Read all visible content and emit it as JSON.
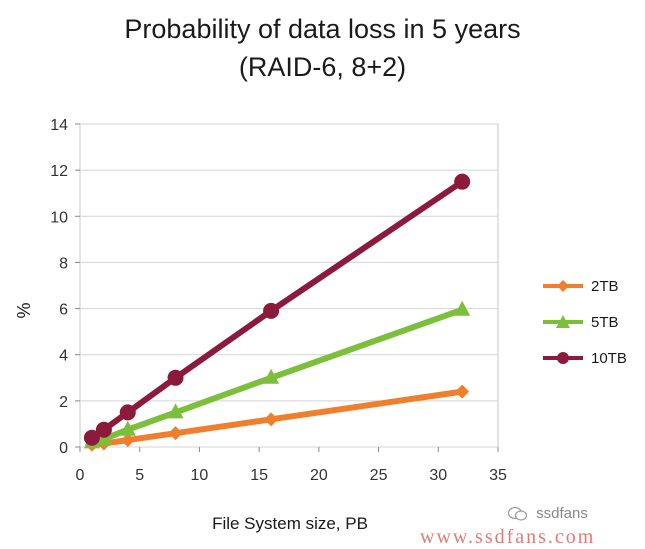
{
  "chart_data": {
    "type": "line",
    "title": "Probability of data loss in 5 years",
    "subtitle": "(RAID-6, 8+2)",
    "xlabel": "File System size, PB",
    "ylabel": "%",
    "xlim": [
      0,
      35
    ],
    "ylim": [
      0,
      14
    ],
    "xticks": [
      0,
      5,
      10,
      15,
      20,
      25,
      30,
      35
    ],
    "yticks": [
      0,
      2,
      4,
      6,
      8,
      10,
      12,
      14
    ],
    "grid": "horizontal",
    "legend_position": "right",
    "x": [
      1,
      2,
      4,
      8,
      16,
      32
    ],
    "series": [
      {
        "name": "2TB",
        "color": "#f07f2d",
        "marker": "diamond",
        "values": [
          0.1,
          0.15,
          0.3,
          0.6,
          1.2,
          2.4
        ]
      },
      {
        "name": "5TB",
        "color": "#7cbf3a",
        "marker": "triangle",
        "values": [
          0.2,
          0.35,
          0.75,
          1.5,
          3.0,
          5.95
        ]
      },
      {
        "name": "10TB",
        "color": "#8b1a3c",
        "marker": "circle",
        "values": [
          0.4,
          0.75,
          1.5,
          3.0,
          5.9,
          11.5
        ]
      }
    ]
  },
  "watermark": {
    "brand": "ssdfans",
    "url": "www.ssdfans.com",
    "brand_icon": "wechat-icon"
  }
}
